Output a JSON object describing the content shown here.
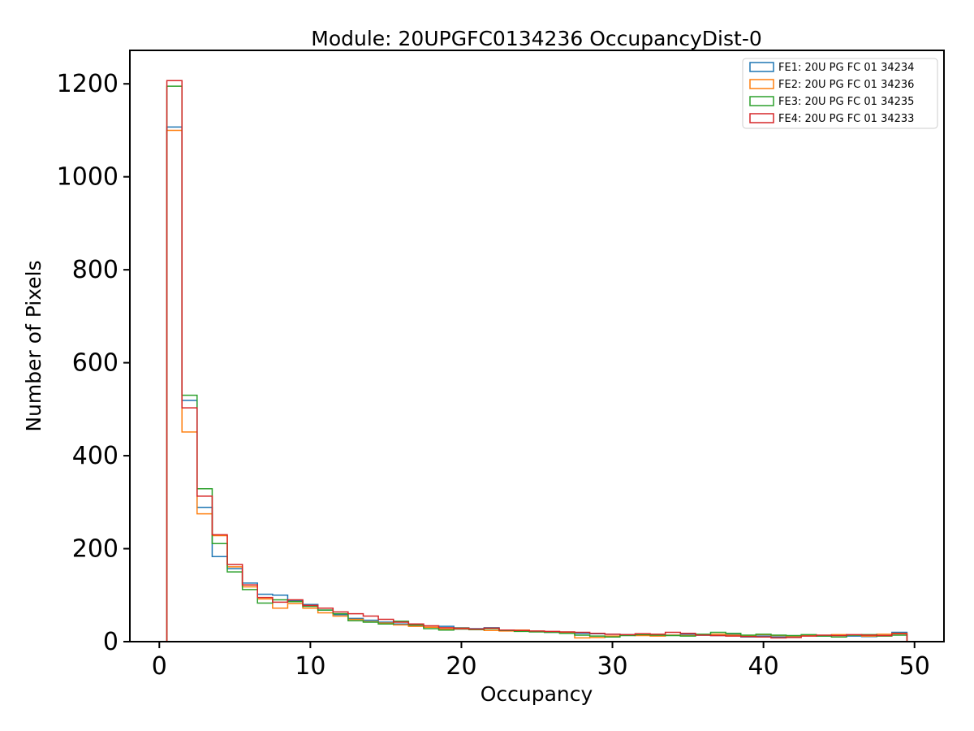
{
  "title": "Module: 20UPGFC0134236 OccupancyDist-0",
  "chart_data": {
    "type": "bar",
    "histtype": "step",
    "title": "Module: 20UPGFC0134236 OccupancyDist-0",
    "xlabel": "Occupancy",
    "ylabel": "Number of Pixels",
    "xlim": [
      -1.95,
      51.95
    ],
    "ylim": [
      0,
      1272
    ],
    "x_ticks": [
      0,
      10,
      20,
      30,
      40,
      50
    ],
    "y_ticks": [
      0,
      200,
      400,
      600,
      800,
      1000,
      1200
    ],
    "grid": false,
    "legend_position": "upper right",
    "bins": {
      "start": 0.5,
      "width": 1,
      "count": 49
    },
    "series": [
      {
        "name": "FE1: 20U PG FC 01 34234",
        "color": "#1f77b4",
        "values": [
          1107,
          519,
          289,
          183,
          157,
          126,
          102,
          100,
          88,
          80,
          68,
          58,
          50,
          46,
          42,
          38,
          34,
          31,
          33,
          30,
          28,
          30,
          25,
          23,
          22,
          20,
          19,
          18,
          17,
          16,
          15,
          14,
          15,
          14,
          16,
          14,
          13,
          15,
          10,
          12,
          10,
          11,
          13,
          12,
          14,
          12,
          11,
          13,
          20
        ]
      },
      {
        "name": "FE2: 20U PG FC 01 34236",
        "color": "#ff7f0e",
        "values": [
          1100,
          451,
          275,
          228,
          161,
          118,
          92,
          72,
          82,
          72,
          62,
          55,
          48,
          43,
          40,
          36,
          33,
          31,
          27,
          29,
          26,
          24,
          23,
          25,
          22,
          21,
          20,
          8,
          9,
          12,
          14,
          13,
          12,
          14,
          13,
          15,
          16,
          14,
          12,
          15,
          13,
          12,
          14,
          13,
          15,
          14,
          12,
          16,
          18
        ]
      },
      {
        "name": "FE3: 20U PG FC 01 34235",
        "color": "#2ca02c",
        "values": [
          1195,
          530,
          329,
          211,
          150,
          112,
          83,
          90,
          86,
          76,
          68,
          60,
          45,
          42,
          38,
          44,
          36,
          28,
          25,
          27,
          26,
          28,
          24,
          22,
          21,
          20,
          18,
          14,
          12,
          10,
          13,
          15,
          14,
          13,
          12,
          16,
          20,
          18,
          14,
          16,
          14,
          13,
          15,
          12,
          10,
          14,
          15,
          12,
          14
        ]
      },
      {
        "name": "FE4: 20U PG FC 01 34233",
        "color": "#d62728",
        "values": [
          1207,
          503,
          313,
          230,
          166,
          122,
          95,
          85,
          90,
          78,
          72,
          64,
          60,
          55,
          48,
          42,
          38,
          34,
          30,
          28,
          27,
          29,
          25,
          24,
          23,
          22,
          21,
          20,
          18,
          16,
          15,
          17,
          16,
          20,
          18,
          14,
          13,
          12,
          11,
          10,
          8,
          9,
          12,
          14,
          13,
          15,
          14,
          13,
          17
        ]
      }
    ],
    "axes_color": "#000000",
    "legend_border_color": "#cccccc",
    "legend_background": "#ffffff"
  }
}
